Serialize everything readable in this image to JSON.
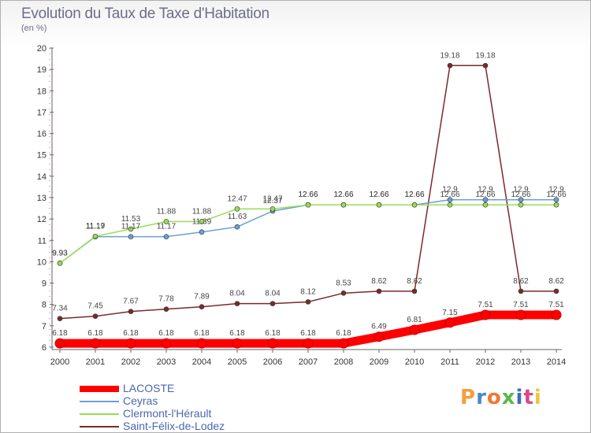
{
  "chart_data": {
    "type": "line",
    "title": "Evolution du Taux de Taxe d'Habitation",
    "subtitle": "(en %)",
    "xlabel": "",
    "ylabel": "",
    "x": [
      "2000",
      "2001",
      "2002",
      "2003",
      "2004",
      "2005",
      "2006",
      "2007",
      "2008",
      "2009",
      "2010",
      "2011",
      "2012",
      "2013",
      "2014"
    ],
    "ylim": [
      6,
      20
    ],
    "yticks": [
      "6",
      "7",
      "8",
      "9",
      "10",
      "11",
      "12",
      "13",
      "14",
      "15",
      "16",
      "17",
      "18",
      "19",
      "20"
    ],
    "grid": false,
    "legend_position": "bottom-left",
    "series": [
      {
        "name": "LACOSTE",
        "color": "#ff0000",
        "values": [
          6.18,
          6.18,
          6.18,
          6.18,
          6.18,
          6.18,
          6.18,
          6.18,
          6.18,
          6.49,
          6.81,
          7.15,
          7.51,
          7.51,
          7.51
        ],
        "labels": [
          "6.18",
          "6.18",
          "6.18",
          "6.18",
          "6.18",
          "6.18",
          "6.18",
          "6.18",
          "6.18",
          "6.49",
          "6.81",
          "7.15",
          "7.51",
          "7.51",
          "7.51"
        ]
      },
      {
        "name": "Ceyras",
        "color": "#6b9fd6",
        "values": [
          9.93,
          11.17,
          11.17,
          11.17,
          11.39,
          11.63,
          12.37,
          12.66,
          12.66,
          12.66,
          12.66,
          12.9,
          12.9,
          12.9,
          12.9
        ],
        "labels": [
          "9.93",
          "11.17",
          "11.17",
          "11.17",
          "11.39",
          "11.63",
          "12.37",
          "12.66",
          "12.66",
          "12.66",
          "12.66",
          "12.9",
          "12.9",
          "12.9",
          "12.9"
        ]
      },
      {
        "name": "Clermont-l'Hérault",
        "color": "#99dd55",
        "values": [
          9.93,
          11.19,
          11.53,
          11.88,
          11.88,
          12.47,
          12.47,
          12.66,
          12.66,
          12.66,
          12.66,
          12.66,
          12.66,
          12.66,
          12.66
        ],
        "labels": [
          "9.93",
          "11.19",
          "11.53",
          "11.88",
          "11.88",
          "12.47",
          "12.47",
          "12.66",
          "12.66",
          "12.66",
          "12.66",
          "12.66",
          "12.66",
          "12.66",
          "12.66"
        ]
      },
      {
        "name": "Saint-Félix-de-Lodez",
        "color": "#7a2a2a",
        "values": [
          7.34,
          7.45,
          7.67,
          7.78,
          7.89,
          8.04,
          8.04,
          8.12,
          8.53,
          8.62,
          8.62,
          19.18,
          19.18,
          8.62,
          8.62
        ],
        "labels": [
          "7.34",
          "7.45",
          "7.67",
          "7.78",
          "7.89",
          "8.04",
          "8.04",
          "8.12",
          "8.53",
          "8.62",
          "8.62",
          "19.18",
          "19.18",
          "8.62",
          "8.62"
        ]
      }
    ]
  },
  "branding": {
    "logo_text": "Proxiti",
    "logo_colors": [
      "#f2a03c",
      "#4a89c8",
      "#f07830",
      "#5ab84a",
      "#3a6fc0",
      "#d64a8a",
      "#f2c43c"
    ]
  }
}
